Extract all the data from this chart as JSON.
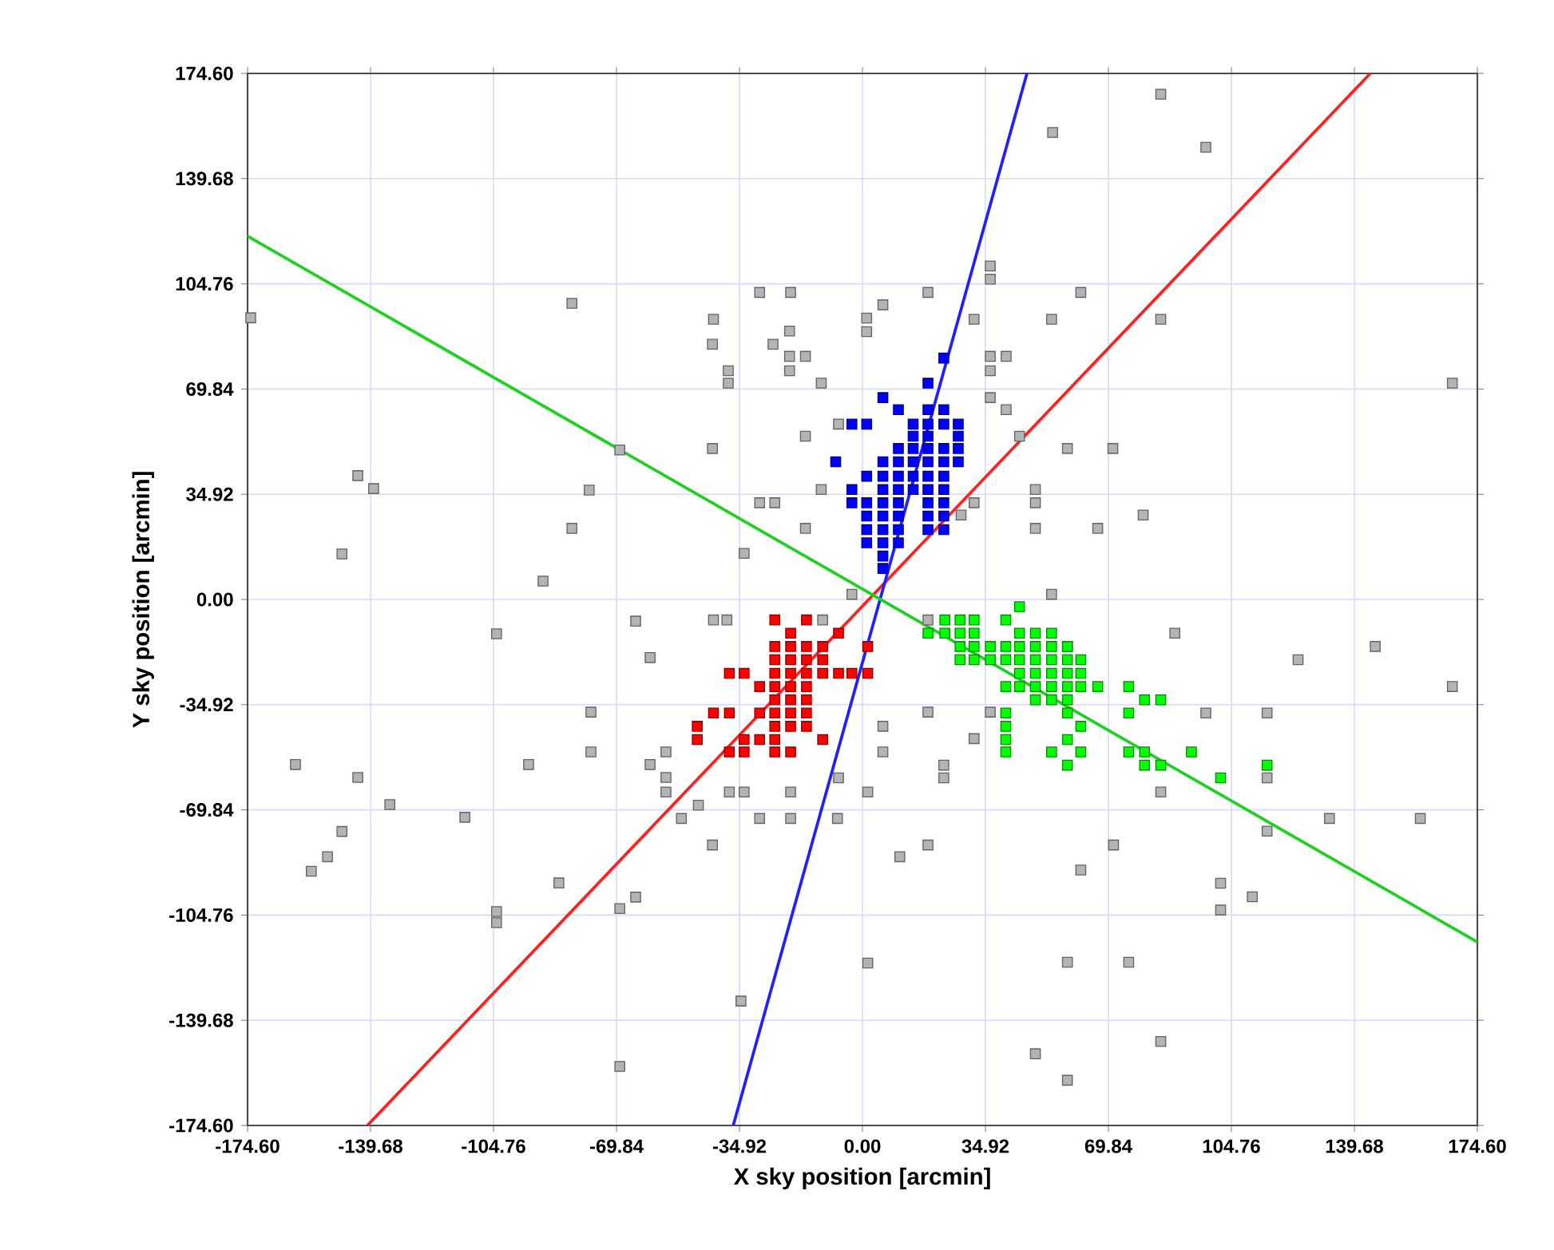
{
  "chart_data": {
    "type": "scatter",
    "xlabel": "X sky position [arcmin]",
    "ylabel": "Y sky position [arcmin]",
    "xlim": [
      -174.6,
      174.6
    ],
    "ylim": [
      -174.6,
      174.6
    ],
    "xticks": [
      {
        "value": -174.6,
        "label": "-174.60"
      },
      {
        "value": -139.68,
        "label": "-139.68"
      },
      {
        "value": -104.76,
        "label": "-104.76"
      },
      {
        "value": -69.84,
        "label": "-69.84"
      },
      {
        "value": -34.92,
        "label": "-34.92"
      },
      {
        "value": 0,
        "label": "0.00"
      },
      {
        "value": 34.92,
        "label": "34.92"
      },
      {
        "value": 69.84,
        "label": "69.84"
      },
      {
        "value": 104.76,
        "label": "104.76"
      },
      {
        "value": 139.68,
        "label": "139.68"
      },
      {
        "value": 174.6,
        "label": "174.60"
      }
    ],
    "yticks": [
      {
        "value": -174.6,
        "label": "-174.60"
      },
      {
        "value": -139.68,
        "label": "-139.68"
      },
      {
        "value": -104.76,
        "label": "-104.76"
      },
      {
        "value": -69.84,
        "label": "-69.84"
      },
      {
        "value": -34.92,
        "label": "-34.92"
      },
      {
        "value": 0,
        "label": "0.00"
      },
      {
        "value": 34.92,
        "label": "34.92"
      },
      {
        "value": 69.84,
        "label": "69.84"
      },
      {
        "value": 104.76,
        "label": "104.76"
      },
      {
        "value": 139.68,
        "label": "139.68"
      },
      {
        "value": 174.6,
        "label": "174.60"
      }
    ],
    "grid": true,
    "marker": "square",
    "series": [
      {
        "color": "#b4b4b4",
        "x": [
          -173.7,
          84.7,
          97.5,
          54.0,
          167.5,
          -82.5,
          -68.9,
          -143.3,
          -138.8,
          -147.8,
          -77.6,
          -82.5,
          -90.7,
          -103.9,
          -64.4,
          -60.3,
          -77.1,
          -77.1,
          -94.8,
          -161.0,
          -143.3,
          -134.2,
          -147.8,
          -151.9,
          -156.5,
          -112.9,
          -103.9,
          -103.9,
          -86.2,
          -68.9,
          -64.4,
          -68.9,
          -34.5,
          -55.8,
          -60.3,
          -55.8,
          -55.8,
          36.3,
          36.3,
          -29.2,
          -20.4,
          18.6,
          62.0,
          5.8,
          -42.3,
          1.2,
          1.2,
          31.7,
          53.7,
          -20.7,
          -42.6,
          -25.4,
          -20.7,
          -16.2,
          -20.7,
          -38.1,
          -38.1,
          36.3,
          40.8,
          36.3,
          -11.7,
          36.3,
          40.8,
          -16.2,
          -42.6,
          -6.8,
          44.6,
          58.2,
          -11.7,
          -29.2,
          -24.9,
          49.1,
          49.1,
          31.7,
          -16.2,
          28.0,
          49.1,
          -33.6,
          -3.0,
          53.7,
          84.7,
          71.1,
          79.7,
          66.8,
          -42.3,
          -38.5,
          -11.3,
          18.6,
          -46.6,
          -51.4,
          -37.8,
          -33.6,
          -20.4,
          -6.8,
          1.5,
          -29.2,
          -20.4,
          -7.1,
          -42.6,
          5.8,
          5.8,
          18.6,
          31.7,
          36.3,
          23.1,
          23.1,
          10.6,
          18.6,
          58.2,
          62.0,
          1.5,
          58.2,
          49.1,
          58.2,
          88.7,
          123.7,
          145.6,
          167.5,
          97.5,
          114.9,
          84.7,
          114.9,
          132.6,
          158.4,
          114.9,
          71.3,
          101.7,
          101.7,
          110.7,
          75.6,
          84.7
        ],
        "values": [
          93.5,
          167.7,
          150.1,
          155.0,
          71.8,
          98.3,
          49.6,
          41.1,
          36.8,
          15.1,
          36.3,
          23.6,
          6.1,
          -11.4,
          -7.2,
          -19.3,
          -37.4,
          -50.6,
          -54.8,
          -54.8,
          -59.1,
          -68.1,
          -77.0,
          -85.4,
          -90.2,
          -72.3,
          -103.6,
          -107.3,
          -94.1,
          -102.6,
          -98.8,
          -155.0,
          -133.3,
          -50.6,
          -54.8,
          -59.1,
          -63.9,
          110.7,
          106.3,
          101.9,
          101.9,
          101.9,
          101.9,
          97.8,
          93.0,
          93.4,
          88.9,
          93.0,
          93.0,
          89.1,
          84.7,
          84.7,
          80.7,
          80.7,
          75.9,
          75.9,
          71.8,
          80.7,
          80.7,
          75.9,
          71.8,
          67.0,
          63.0,
          54.2,
          50.1,
          58.2,
          54.2,
          50.1,
          36.5,
          32.1,
          32.1,
          36.5,
          32.1,
          32.1,
          23.6,
          28.0,
          23.6,
          15.3,
          1.7,
          1.7,
          93.0,
          50.1,
          28.0,
          23.6,
          -6.8,
          -6.8,
          -6.8,
          -6.8,
          -68.3,
          -72.7,
          -63.9,
          -63.9,
          -63.9,
          -59.2,
          -63.9,
          -72.7,
          -72.7,
          -72.7,
          -81.5,
          -42.1,
          -50.6,
          -37.4,
          -46.2,
          -37.4,
          -55.0,
          -59.2,
          -85.4,
          -81.5,
          -15.6,
          -89.8,
          -120.7,
          -120.4,
          -150.8,
          -159.6,
          -11.2,
          -20.0,
          -15.6,
          -28.9,
          -37.7,
          -37.7,
          -63.9,
          -59.2,
          -72.7,
          -72.7,
          -76.9,
          -81.5,
          -94.2,
          -103.1,
          -98.7,
          -120.4,
          -146.7
        ]
      },
      {
        "color": "#ff0000",
        "x": [
          -24.9,
          -15.9,
          -20.4,
          -6.8,
          -24.9,
          -20.4,
          -15.9,
          -11.3,
          1.5,
          -24.9,
          -20.4,
          -15.9,
          -11.3,
          -37.8,
          -33.6,
          -24.9,
          -20.4,
          -15.9,
          -11.3,
          -6.8,
          -3.0,
          1.5,
          -29.2,
          -24.9,
          -20.4,
          -15.9,
          -24.9,
          -20.4,
          -15.9,
          -42.3,
          -37.8,
          -29.2,
          -24.9,
          -20.4,
          -15.9,
          -46.9,
          -24.9,
          -20.4,
          -15.9,
          -46.9,
          -33.6,
          -29.2,
          -24.9,
          -11.3,
          -37.8,
          -33.6,
          -24.9,
          -20.4
        ],
        "values": [
          -6.8,
          -6.8,
          -11.2,
          -11.2,
          -15.6,
          -15.6,
          -15.6,
          -15.6,
          -15.6,
          -20.0,
          -20.0,
          -20.0,
          -20.0,
          -24.5,
          -24.5,
          -24.5,
          -24.5,
          -24.5,
          -24.5,
          -24.5,
          -24.5,
          -24.5,
          -28.9,
          -28.9,
          -28.9,
          -28.9,
          -33.3,
          -33.3,
          -33.3,
          -37.7,
          -37.7,
          -37.7,
          -37.7,
          -37.7,
          -37.7,
          -42.1,
          -42.1,
          -42.1,
          -42.1,
          -46.5,
          -46.5,
          -46.5,
          -46.5,
          -46.5,
          -50.6,
          -50.6,
          -50.6,
          -50.6
        ]
      },
      {
        "color": "#0000ff",
        "x": [
          23.1,
          18.6,
          5.8,
          10.2,
          18.6,
          23.1,
          -3.0,
          1.2,
          14.4,
          18.6,
          23.1,
          27.2,
          14.4,
          18.6,
          27.2,
          10.2,
          14.4,
          18.6,
          23.1,
          27.2,
          -7.6,
          5.8,
          10.2,
          14.4,
          18.6,
          23.1,
          27.2,
          1.2,
          5.8,
          10.2,
          14.4,
          18.6,
          23.1,
          -3.0,
          5.8,
          10.2,
          14.4,
          18.6,
          23.1,
          -3.0,
          1.2,
          5.8,
          10.2,
          18.6,
          23.1,
          1.2,
          5.8,
          10.2,
          18.6,
          23.1,
          1.2,
          5.8,
          10.2,
          18.6,
          23.1,
          1.2,
          5.8,
          10.2,
          5.8,
          5.8
        ],
        "values": [
          80.1,
          71.8,
          67.0,
          63.0,
          63.0,
          63.0,
          58.2,
          58.2,
          58.2,
          58.2,
          58.2,
          58.2,
          54.2,
          54.2,
          54.2,
          50.1,
          50.1,
          50.1,
          50.1,
          50.1,
          45.7,
          45.7,
          45.7,
          45.7,
          45.7,
          45.7,
          45.7,
          40.9,
          40.9,
          40.9,
          40.9,
          40.9,
          40.9,
          36.5,
          36.5,
          36.5,
          36.5,
          36.5,
          36.5,
          32.1,
          32.1,
          32.1,
          32.1,
          32.1,
          32.1,
          27.7,
          27.7,
          27.7,
          27.7,
          27.7,
          23.2,
          23.2,
          23.2,
          23.2,
          23.2,
          18.8,
          18.8,
          18.8,
          14.4,
          10.3
        ]
      },
      {
        "color": "#00ff00",
        "x": [
          44.6,
          23.4,
          27.7,
          31.7,
          40.7,
          18.6,
          23.4,
          27.7,
          31.7,
          44.6,
          49.1,
          53.7,
          27.7,
          31.7,
          36.3,
          40.7,
          44.6,
          49.1,
          53.7,
          58.2,
          27.7,
          31.7,
          36.3,
          40.7,
          44.6,
          49.1,
          53.7,
          58.2,
          62.0,
          44.6,
          49.1,
          53.7,
          58.2,
          62.0,
          40.7,
          44.6,
          49.1,
          53.7,
          58.2,
          62.0,
          49.1,
          53.7,
          58.2,
          40.7,
          58.2,
          40.7,
          62.0,
          40.7,
          58.2,
          40.7,
          53.7,
          58.2,
          66.8,
          75.6,
          80.1,
          84.7,
          75.6,
          62.0,
          75.6,
          80.1,
          80.1,
          84.7,
          93.4,
          101.7,
          114.9
        ],
        "values": [
          -2.4,
          -6.8,
          -6.8,
          -6.8,
          -6.8,
          -11.2,
          -11.2,
          -11.2,
          -11.2,
          -11.2,
          -11.2,
          -11.2,
          -15.6,
          -15.6,
          -15.6,
          -15.6,
          -15.6,
          -15.6,
          -15.6,
          -15.6,
          -20.0,
          -20.0,
          -20.0,
          -20.0,
          -20.0,
          -20.0,
          -20.0,
          -20.0,
          -20.0,
          -24.5,
          -24.5,
          -24.5,
          -24.5,
          -24.5,
          -28.9,
          -28.9,
          -28.9,
          -28.9,
          -28.9,
          -28.9,
          -33.3,
          -33.3,
          -33.3,
          -37.7,
          -37.7,
          -42.1,
          -42.1,
          -46.5,
          -46.5,
          -50.6,
          -50.6,
          -55.0,
          -28.9,
          -28.9,
          -33.3,
          -33.3,
          -37.7,
          -50.6,
          -50.6,
          -50.6,
          -55.0,
          -55.0,
          -50.6,
          -59.2,
          -55.0
        ]
      },
      {
        "type": "line",
        "marker": "none",
        "line_style": "solid",
        "color": "#ff2020",
        "x": [
          -140.6,
          144.2
        ],
        "values": [
          -174.6,
          174.6
        ]
      },
      {
        "type": "line",
        "marker": "none",
        "line_style": "solid",
        "color": "#2020ff",
        "x": [
          -36.7,
          46.7
        ],
        "values": [
          -174.6,
          174.6
        ]
      },
      {
        "type": "line",
        "marker": "none",
        "line_style": "solid",
        "color": "#20d020",
        "x": [
          -174.6,
          174.6
        ],
        "values": [
          120.6,
          -113.7
        ]
      }
    ]
  }
}
